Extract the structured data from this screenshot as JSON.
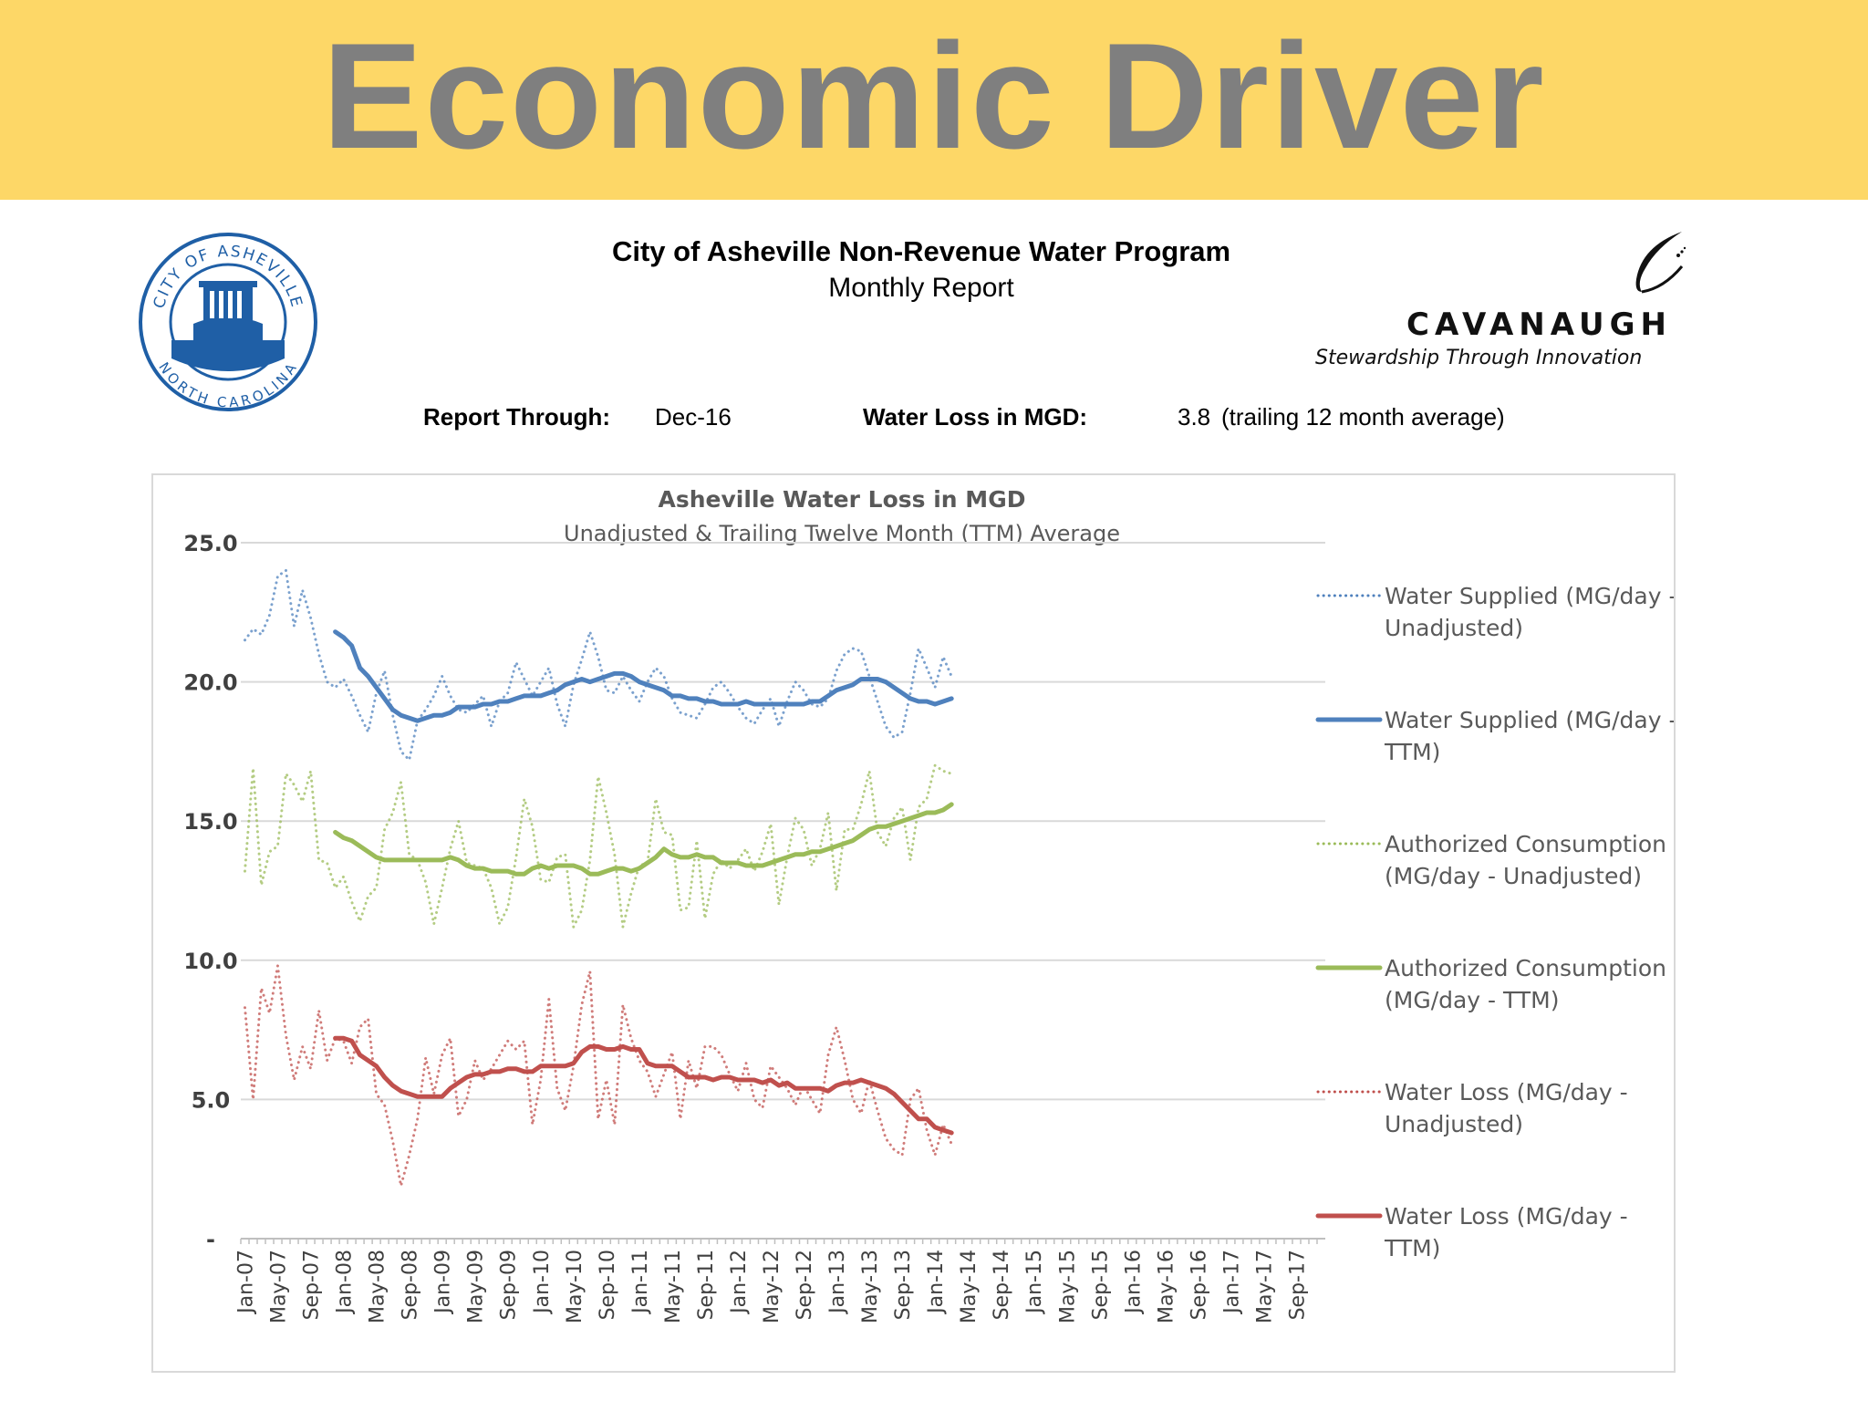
{
  "banner": {
    "title": "Economic Driver"
  },
  "logo": {
    "ring_text_top": "CITY OF ASHEVILLE",
    "ring_text_bottom": "NORTH CAROLINA"
  },
  "report": {
    "title": "City of Asheville Non-Revenue Water Program",
    "subtitle": "Monthly Report",
    "through_label": "Report Through:",
    "through_value": "Dec-16",
    "loss_label": "Water Loss in MGD:",
    "loss_value": "3.8",
    "loss_note": "(trailing 12 month average)"
  },
  "brand": {
    "name": "CAVANAUGH",
    "tagline": "Stewardship Through Innovation",
    "icon": "swoosh-icon"
  },
  "colors": {
    "banner": "#FDD767",
    "supplied": "#4F81BD",
    "consumption": "#9BBB59",
    "loss": "#C0504D"
  },
  "chart_data": {
    "type": "line",
    "title": "Asheville Water Loss in MGD",
    "subtitle": "Unadjusted & Trailing Twelve Month (TTM) Average",
    "ylim": [
      0,
      25
    ],
    "y_ticks": [
      {
        "value": 0,
        "label": "-"
      },
      {
        "value": 5,
        "label": "5.0"
      },
      {
        "value": 10,
        "label": "10.0"
      },
      {
        "value": 15,
        "label": "15.0"
      },
      {
        "value": 20,
        "label": "20.0"
      },
      {
        "value": 25,
        "label": "25.0"
      }
    ],
    "x_tick_labels": [
      "Jan-07",
      "May-07",
      "Sep-07",
      "Jan-08",
      "May-08",
      "Sep-08",
      "Jan-09",
      "May-09",
      "Sep-09",
      "Jan-10",
      "May-10",
      "Sep-10",
      "Jan-11",
      "May-11",
      "Sep-11",
      "Jan-12",
      "May-12",
      "Sep-12",
      "Jan-13",
      "May-13",
      "Sep-13",
      "Jan-14",
      "May-14",
      "Sep-14",
      "Jan-15",
      "May-15",
      "Sep-15",
      "Jan-16",
      "May-16",
      "Sep-16",
      "Jan-17",
      "May-17",
      "Sep-17"
    ],
    "x_range": [
      "Jan-07",
      "Dec-17"
    ],
    "grid": true,
    "legend_position": "right",
    "series": [
      {
        "name": "Water Supplied (MG/day - Unadjusted)",
        "style": "dotted",
        "color": "#4F81BD",
        "start": "Jan-07",
        "values": [
          21.5,
          21.9,
          21.7,
          22.4,
          23.8,
          24.0,
          22.0,
          23.3,
          22.3,
          21.0,
          20.0,
          19.8,
          20.1,
          19.5,
          18.8,
          18.2,
          19.6,
          20.4,
          18.8,
          17.5,
          17.2,
          18.6,
          19.0,
          19.5,
          20.2,
          19.5,
          19.0,
          18.9,
          19.2,
          19.5,
          18.4,
          19.3,
          19.6,
          20.7,
          20.1,
          19.5,
          20.0,
          20.5,
          19.2,
          18.4,
          19.9,
          20.8,
          21.8,
          20.9,
          19.7,
          19.6,
          20.2,
          19.7,
          19.3,
          20.0,
          20.5,
          20.2,
          19.4,
          18.9,
          18.8,
          18.7,
          19.2,
          19.8,
          20.0,
          19.6,
          19.1,
          18.7,
          18.5,
          19.0,
          19.4,
          18.4,
          19.3,
          20.0,
          19.7,
          19.2,
          19.1,
          19.4,
          20.4,
          21.0,
          21.2,
          21.1,
          20.2,
          19.3,
          18.4,
          18.0,
          18.2,
          19.6,
          21.2,
          20.5,
          19.8,
          20.9,
          20.2
        ]
      },
      {
        "name": "Water Supplied (MG/day - TTM)",
        "style": "solid",
        "color": "#4F81BD",
        "start": "Dec-07",
        "values": [
          21.8,
          21.6,
          21.3,
          20.5,
          20.2,
          19.8,
          19.4,
          19.0,
          18.8,
          18.7,
          18.6,
          18.7,
          18.8,
          18.8,
          18.9,
          19.1,
          19.1,
          19.1,
          19.2,
          19.2,
          19.3,
          19.3,
          19.4,
          19.5,
          19.5,
          19.5,
          19.6,
          19.7,
          19.9,
          20.0,
          20.1,
          20.0,
          20.1,
          20.2,
          20.3,
          20.3,
          20.2,
          20.0,
          19.9,
          19.8,
          19.7,
          19.5,
          19.5,
          19.4,
          19.4,
          19.3,
          19.3,
          19.2,
          19.2,
          19.2,
          19.3,
          19.2,
          19.2,
          19.2,
          19.2,
          19.2,
          19.2,
          19.2,
          19.3,
          19.3,
          19.5,
          19.7,
          19.8,
          19.9,
          20.1,
          20.1,
          20.1,
          20.0,
          19.8,
          19.6,
          19.4,
          19.3,
          19.3,
          19.2,
          19.3,
          19.4
        ]
      },
      {
        "name": "Authorized Consumption (MG/day - Unadjusted)",
        "style": "dotted",
        "color": "#9BBB59",
        "start": "Jan-07",
        "values": [
          13.2,
          16.9,
          12.7,
          13.9,
          14.1,
          16.7,
          16.3,
          15.7,
          16.8,
          13.6,
          13.5,
          12.6,
          13.0,
          12.1,
          11.4,
          12.3,
          12.6,
          14.7,
          15.3,
          16.4,
          13.8,
          13.6,
          12.8,
          11.3,
          12.6,
          14.0,
          15.0,
          13.5,
          13.4,
          13.3,
          12.6,
          11.3,
          11.9,
          13.7,
          15.8,
          14.8,
          12.9,
          12.8,
          13.7,
          13.8,
          11.2,
          11.8,
          13.6,
          16.6,
          15.3,
          13.8,
          11.2,
          12.4,
          13.4,
          13.5,
          15.8,
          14.6,
          14.5,
          11.8,
          11.9,
          14.3,
          11.5,
          13.1,
          13.6,
          13.3,
          13.6,
          14.0,
          13.2,
          13.9,
          14.9,
          12.0,
          13.7,
          15.1,
          14.7,
          13.4,
          14.0,
          15.3,
          12.5,
          14.7,
          14.7,
          15.6,
          16.8,
          14.6,
          14.1,
          15.1,
          15.5,
          13.6,
          15.5,
          15.8,
          17.0,
          16.8,
          16.7
        ]
      },
      {
        "name": "Authorized Consumption (MG/day - TTM)",
        "style": "solid",
        "color": "#9BBB59",
        "start": "Dec-07",
        "values": [
          14.6,
          14.4,
          14.3,
          14.1,
          13.9,
          13.7,
          13.6,
          13.6,
          13.6,
          13.6,
          13.6,
          13.6,
          13.6,
          13.6,
          13.7,
          13.6,
          13.4,
          13.3,
          13.3,
          13.2,
          13.2,
          13.2,
          13.1,
          13.1,
          13.3,
          13.4,
          13.3,
          13.4,
          13.4,
          13.4,
          13.3,
          13.1,
          13.1,
          13.2,
          13.3,
          13.3,
          13.2,
          13.3,
          13.5,
          13.7,
          14.0,
          13.8,
          13.7,
          13.7,
          13.8,
          13.7,
          13.7,
          13.5,
          13.5,
          13.5,
          13.4,
          13.4,
          13.4,
          13.5,
          13.6,
          13.7,
          13.8,
          13.8,
          13.9,
          13.9,
          14.0,
          14.1,
          14.2,
          14.3,
          14.5,
          14.7,
          14.8,
          14.8,
          14.9,
          15.0,
          15.1,
          15.2,
          15.3,
          15.3,
          15.4,
          15.6
        ]
      },
      {
        "name": "Water Loss (MG/day - Unadjusted)",
        "style": "dotted",
        "color": "#C0504D",
        "start": "Jan-07",
        "values": [
          8.3,
          5.0,
          9.0,
          8.1,
          9.8,
          7.3,
          5.7,
          6.9,
          6.1,
          8.2,
          6.4,
          7.2,
          7.1,
          6.3,
          7.6,
          7.9,
          5.2,
          4.8,
          3.5,
          1.9,
          3.0,
          4.3,
          6.5,
          5.2,
          6.6,
          7.2,
          4.4,
          5.0,
          6.4,
          5.7,
          6.1,
          6.6,
          7.1,
          6.8,
          7.1,
          4.1,
          5.7,
          8.6,
          5.4,
          4.6,
          6.2,
          8.4,
          9.6,
          4.3,
          5.7,
          4.1,
          8.4,
          7.2,
          6.4,
          6.0,
          5.1,
          5.9,
          6.7,
          4.3,
          6.4,
          5.4,
          6.9,
          6.9,
          6.6,
          5.9,
          5.3,
          6.3,
          5.0,
          4.7,
          6.2,
          5.8,
          5.4,
          4.8,
          5.5,
          5.0,
          4.5,
          6.6,
          7.6,
          6.4,
          5.0,
          4.5,
          5.7,
          4.6,
          3.6,
          3.2,
          3.0,
          5.0,
          5.4,
          3.9,
          3.0,
          4.1,
          3.4
        ]
      },
      {
        "name": "Water Loss (MG/day - TTM)",
        "style": "solid",
        "color": "#C0504D",
        "start": "Dec-07",
        "values": [
          7.2,
          7.2,
          7.1,
          6.6,
          6.4,
          6.2,
          5.8,
          5.5,
          5.3,
          5.2,
          5.1,
          5.1,
          5.1,
          5.1,
          5.4,
          5.6,
          5.8,
          5.9,
          5.9,
          6.0,
          6.0,
          6.1,
          6.1,
          6.0,
          6.0,
          6.2,
          6.2,
          6.2,
          6.2,
          6.3,
          6.7,
          6.9,
          6.9,
          6.8,
          6.8,
          6.9,
          6.8,
          6.8,
          6.3,
          6.2,
          6.2,
          6.2,
          6.0,
          5.8,
          5.8,
          5.8,
          5.7,
          5.8,
          5.8,
          5.7,
          5.7,
          5.7,
          5.6,
          5.7,
          5.5,
          5.6,
          5.4,
          5.4,
          5.4,
          5.4,
          5.3,
          5.5,
          5.6,
          5.6,
          5.7,
          5.6,
          5.5,
          5.4,
          5.2,
          4.9,
          4.6,
          4.3,
          4.3,
          4.0,
          3.9,
          3.8
        ]
      }
    ]
  }
}
